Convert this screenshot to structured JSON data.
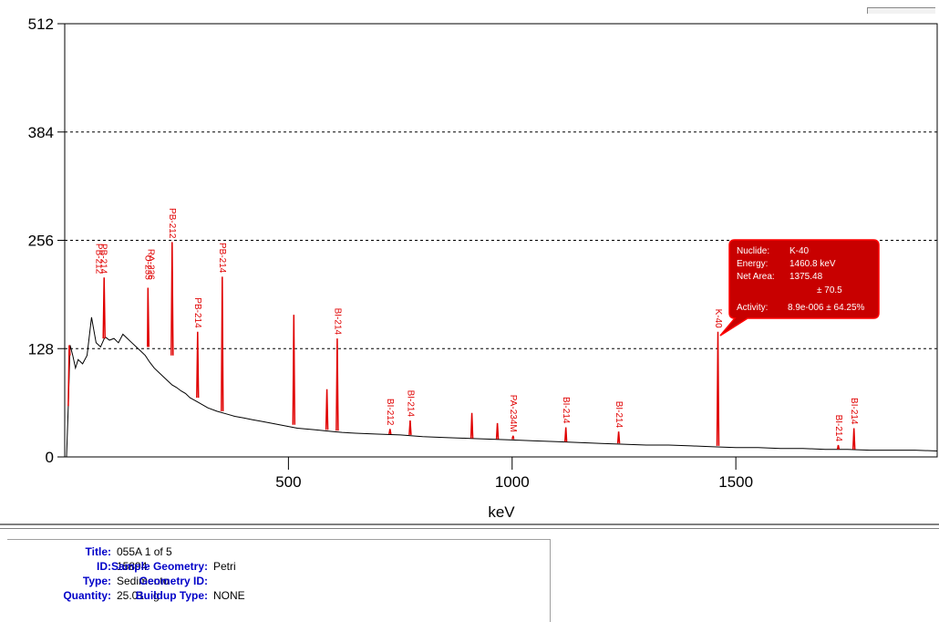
{
  "chart_data": {
    "type": "line",
    "xlabel": "keV",
    "ylabel": "",
    "xlim": [
      0,
      1950
    ],
    "ylim": [
      0,
      512
    ],
    "y_ticks": [
      0,
      128,
      256,
      384,
      512
    ],
    "x_ticks": [
      500,
      1000,
      1500
    ],
    "grid": "horizontal dashed",
    "series": [
      {
        "color": "#000000",
        "x": [
          0,
          4,
          8,
          12,
          18,
          24,
          30,
          40,
          50,
          60,
          70,
          80,
          90,
          100,
          110,
          120,
          130,
          140,
          150,
          160,
          170,
          180,
          190,
          200,
          210,
          220,
          230,
          240,
          250,
          260,
          270,
          280,
          290,
          300,
          320,
          340,
          360,
          380,
          400,
          420,
          440,
          460,
          480,
          500,
          520,
          540,
          560,
          580,
          600,
          620,
          650,
          700,
          750,
          800,
          850,
          900,
          950,
          1000,
          1050,
          1100,
          1150,
          1200,
          1250,
          1300,
          1350,
          1400,
          1450,
          1500,
          1550,
          1600,
          1650,
          1700,
          1750,
          1800,
          1850,
          1900,
          1950
        ],
        "y": [
          0,
          0,
          60,
          132,
          120,
          105,
          115,
          110,
          120,
          165,
          135,
          130,
          142,
          138,
          140,
          135,
          145,
          140,
          135,
          130,
          125,
          120,
          112,
          105,
          100,
          95,
          90,
          85,
          82,
          78,
          75,
          70,
          67,
          64,
          58,
          54,
          51,
          48,
          46,
          44,
          42,
          40,
          38,
          36,
          34,
          33,
          32,
          31,
          30,
          29,
          28,
          27,
          26,
          24,
          23,
          22,
          21,
          20,
          19,
          18,
          17,
          16,
          15,
          14,
          14,
          13,
          12,
          11,
          11,
          10,
          10,
          9,
          9,
          8,
          8,
          8,
          7
        ]
      },
      {
        "color": "#e00000",
        "name": "",
        "x": [
          8,
          10,
          12,
          86,
          88,
          90,
          185,
          186,
          188,
          238,
          240,
          242,
          295,
          297,
          299,
          350,
          352,
          354,
          510,
          512,
          514,
          584,
          586,
          588,
          607,
          609,
          611,
          725,
          727,
          729,
          770,
          772,
          774,
          908,
          910,
          912,
          965,
          967,
          969,
          1000,
          1002,
          1004,
          1118,
          1120,
          1122,
          1236,
          1238,
          1240,
          1458,
          1460,
          1462,
          1727,
          1729,
          1731,
          1762,
          1764,
          1766
        ],
        "y": [
          60,
          132,
          120,
          140,
          212,
          140,
          130,
          200,
          130,
          120,
          254,
          120,
          70,
          148,
          70,
          54,
          213,
          54,
          38,
          168,
          38,
          32,
          80,
          32,
          31,
          140,
          31,
          27,
          33,
          27,
          26,
          43,
          26,
          22,
          52,
          22,
          21,
          40,
          21,
          21,
          25,
          21,
          18,
          35,
          18,
          16,
          30,
          16,
          13,
          148,
          13,
          9,
          14,
          9,
          9,
          34,
          9
        ]
      }
    ],
    "peaks": [
      {
        "label": "PB-212",
        "x": 76,
        "y": 212
      },
      {
        "label": "PB-214",
        "x": 86,
        "y": 212
      },
      {
        "label": "U-235",
        "x": 186,
        "y": 205
      },
      {
        "label": "RA-226",
        "x": 192,
        "y": 205
      },
      {
        "label": "PB-212",
        "x": 240,
        "y": 254
      },
      {
        "label": "PB-214",
        "x": 297,
        "y": 148
      },
      {
        "label": "PB-214",
        "x": 352,
        "y": 213
      },
      {
        "label": "BI-214",
        "x": 609,
        "y": 140
      },
      {
        "label": "BI-212",
        "x": 727,
        "y": 33
      },
      {
        "label": "BI-214",
        "x": 772,
        "y": 43
      },
      {
        "label": "PA-234M",
        "x": 1002,
        "y": 25
      },
      {
        "label": "BI-214",
        "x": 1120,
        "y": 35
      },
      {
        "label": "BI-214",
        "x": 1238,
        "y": 30
      },
      {
        "label": "K-40",
        "x": 1460,
        "y": 148
      },
      {
        "label": "BI-214",
        "x": 1729,
        "y": 14
      },
      {
        "label": "BI-214",
        "x": 1764,
        "y": 34
      }
    ],
    "tooltip": {
      "nuclide_label": "Nuclide:",
      "nuclide": "K-40",
      "energy_label": "Energy:",
      "energy": "1460.8 keV",
      "area_label": "Net Area:",
      "area": "1375.48",
      "area_err": "± 70.5",
      "activity_label": "Activity:",
      "activity": "8.9e-006 ± 64.25%"
    }
  },
  "info": {
    "title_label": "Title:",
    "title": "055A 1 of 5",
    "id_label": "ID:",
    "id": "15894",
    "type_label": "Type:",
    "type": "Sedimento",
    "quantity_label": "Quantity:",
    "quantity": "25.01   g",
    "geometry_label": "Sample Geometry:",
    "geometry": "Petri",
    "geometry_id_label": "Geometry ID:",
    "geometry_id": "",
    "buildup_label": "Buildup Type:",
    "buildup": "NONE"
  }
}
